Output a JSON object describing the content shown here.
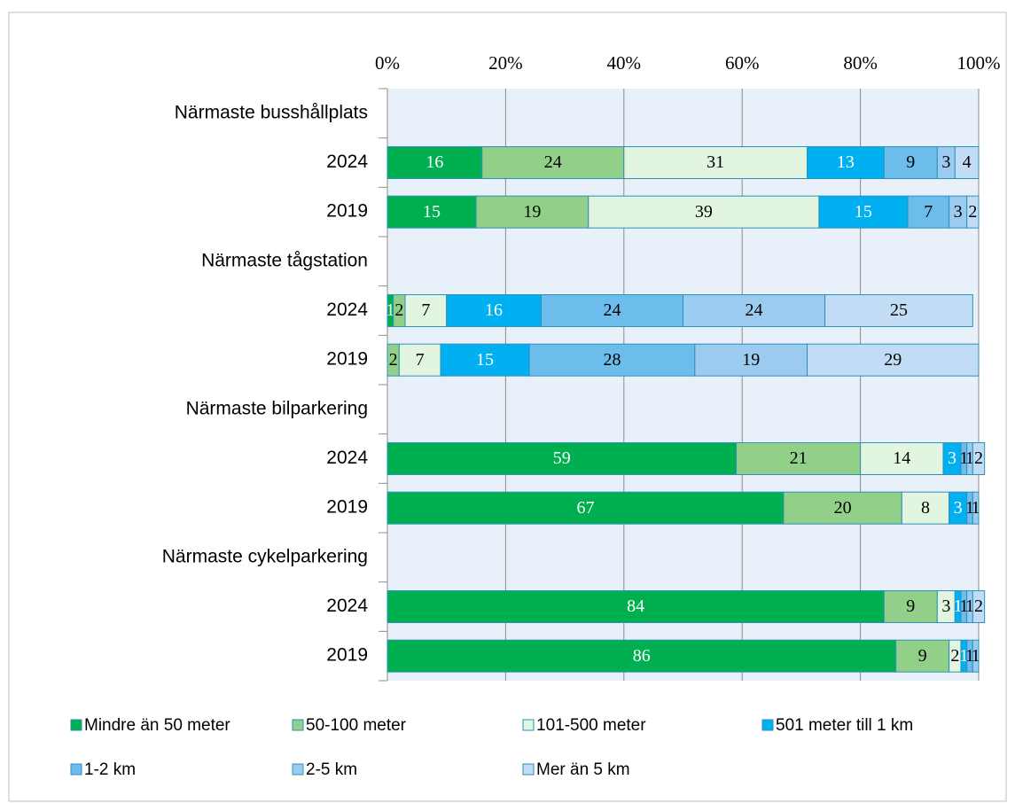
{
  "chart_data": {
    "type": "stacked-bar-horizontal",
    "categories": [
      "Närmaste busshållplats",
      "2024",
      "2019",
      "Närmaste tågstation",
      "2024",
      "2019",
      "Närmaste bilparkering",
      "2024",
      "2019",
      "Närmaste cykelparkering",
      "2024",
      "2019"
    ],
    "series": [
      {
        "name": "Mindre än 50 meter",
        "color": "#00b050",
        "label_color": "#ffffff",
        "values": [
          null,
          16,
          15,
          null,
          1,
          null,
          null,
          59,
          67,
          null,
          84,
          86
        ]
      },
      {
        "name": "50-100 meter",
        "color": "#92d08a",
        "label_color": "#000000",
        "values": [
          null,
          24,
          19,
          null,
          2,
          2,
          null,
          21,
          20,
          null,
          9,
          9
        ]
      },
      {
        "name": "101-500 meter",
        "color": "#e2f5e0",
        "label_color": "#000000",
        "values": [
          null,
          31,
          39,
          null,
          7,
          7,
          null,
          14,
          8,
          null,
          3,
          2
        ]
      },
      {
        "name": "501 meter till 1 km",
        "color": "#00b0f0",
        "label_color": "#ffffff",
        "values": [
          null,
          13,
          15,
          null,
          16,
          15,
          null,
          3,
          3,
          null,
          1,
          1
        ]
      },
      {
        "name": "1-2 km",
        "color": "#6cbcec",
        "label_color": "#000000",
        "values": [
          null,
          9,
          7,
          null,
          24,
          28,
          null,
          1,
          1,
          null,
          1,
          1
        ]
      },
      {
        "name": "2-5 km",
        "color": "#9ccbf0",
        "label_color": "#000000",
        "values": [
          null,
          3,
          3,
          null,
          24,
          19,
          null,
          1,
          1,
          null,
          1,
          1
        ]
      },
      {
        "name": "Mer än 5 km",
        "color": "#c3dcf5",
        "label_color": "#000000",
        "values": [
          null,
          4,
          2,
          null,
          25,
          29,
          null,
          2,
          null,
          null,
          2,
          null
        ]
      }
    ],
    "xlim": [
      0,
      100
    ],
    "xticks": [
      {
        "value": 0,
        "label": "0%"
      },
      {
        "value": 20,
        "label": "20%"
      },
      {
        "value": 40,
        "label": "40%"
      },
      {
        "value": 60,
        "label": "60%"
      },
      {
        "value": 80,
        "label": "80%"
      },
      {
        "value": 100,
        "label": "100%"
      }
    ],
    "grid": true,
    "legend": "bottom"
  }
}
